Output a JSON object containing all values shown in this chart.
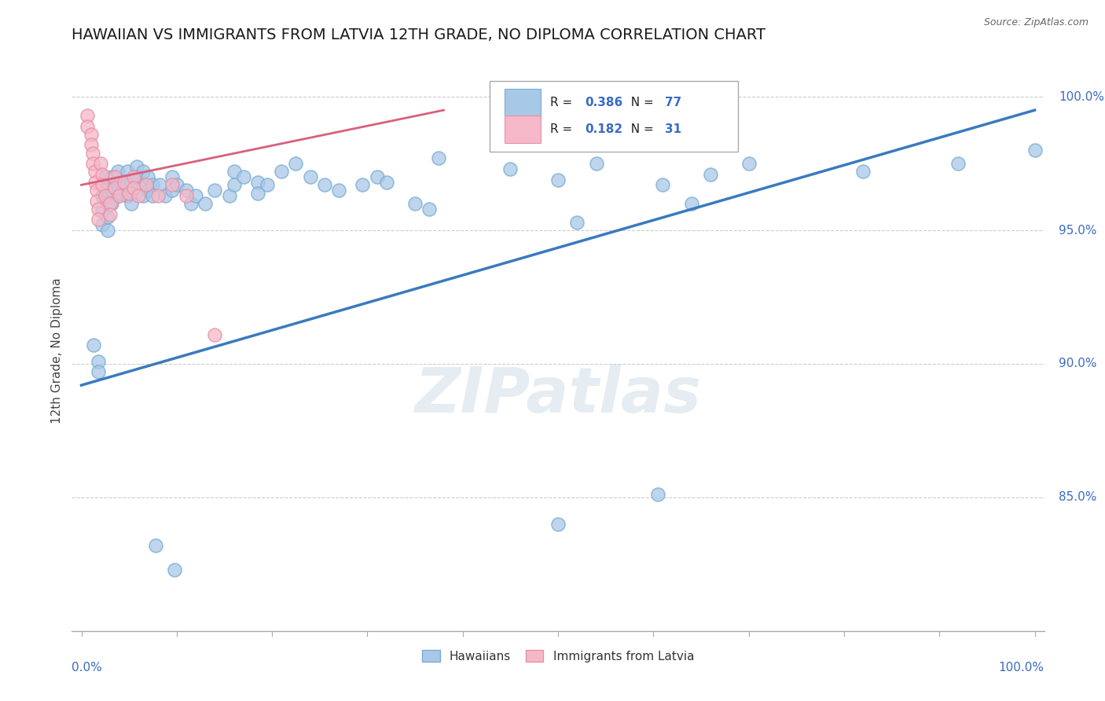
{
  "title": "HAWAIIAN VS IMMIGRANTS FROM LATVIA 12TH GRADE, NO DIPLOMA CORRELATION CHART",
  "source_text": "Source: ZipAtlas.com",
  "ylabel": "12th Grade, No Diploma",
  "legend_blue_r": "0.386",
  "legend_blue_n": "77",
  "legend_pink_r": "0.182",
  "legend_pink_n": "31",
  "legend_label_blue": "Hawaiians",
  "legend_label_pink": "Immigrants from Latvia",
  "watermark": "ZIPatlas",
  "blue_color": "#a8c8e8",
  "blue_edge_color": "#7aaed0",
  "blue_line_color": "#3a7abf",
  "pink_color": "#f5b8c8",
  "pink_edge_color": "#e890a8",
  "pink_line_color": "#d9607a",
  "blue_scatter": [
    [
      0.013,
      0.907
    ],
    [
      0.018,
      0.901
    ],
    [
      0.018,
      0.897
    ],
    [
      0.022,
      0.963
    ],
    [
      0.022,
      0.957
    ],
    [
      0.022,
      0.952
    ],
    [
      0.025,
      0.97
    ],
    [
      0.025,
      0.965
    ],
    [
      0.028,
      0.96
    ],
    [
      0.028,
      0.955
    ],
    [
      0.028,
      0.95
    ],
    [
      0.032,
      0.97
    ],
    [
      0.032,
      0.965
    ],
    [
      0.032,
      0.96
    ],
    [
      0.038,
      0.972
    ],
    [
      0.038,
      0.967
    ],
    [
      0.038,
      0.963
    ],
    [
      0.042,
      0.968
    ],
    [
      0.042,
      0.964
    ],
    [
      0.048,
      0.972
    ],
    [
      0.048,
      0.967
    ],
    [
      0.048,
      0.963
    ],
    [
      0.052,
      0.968
    ],
    [
      0.052,
      0.964
    ],
    [
      0.052,
      0.96
    ],
    [
      0.058,
      0.974
    ],
    [
      0.058,
      0.97
    ],
    [
      0.065,
      0.972
    ],
    [
      0.065,
      0.967
    ],
    [
      0.065,
      0.963
    ],
    [
      0.07,
      0.97
    ],
    [
      0.07,
      0.965
    ],
    [
      0.075,
      0.967
    ],
    [
      0.075,
      0.963
    ],
    [
      0.082,
      0.967
    ],
    [
      0.088,
      0.963
    ],
    [
      0.095,
      0.97
    ],
    [
      0.095,
      0.965
    ],
    [
      0.1,
      0.967
    ],
    [
      0.11,
      0.965
    ],
    [
      0.115,
      0.96
    ],
    [
      0.12,
      0.963
    ],
    [
      0.13,
      0.96
    ],
    [
      0.14,
      0.965
    ],
    [
      0.155,
      0.963
    ],
    [
      0.16,
      0.972
    ],
    [
      0.16,
      0.967
    ],
    [
      0.17,
      0.97
    ],
    [
      0.185,
      0.968
    ],
    [
      0.185,
      0.964
    ],
    [
      0.195,
      0.967
    ],
    [
      0.21,
      0.972
    ],
    [
      0.225,
      0.975
    ],
    [
      0.24,
      0.97
    ],
    [
      0.255,
      0.967
    ],
    [
      0.27,
      0.965
    ],
    [
      0.295,
      0.967
    ],
    [
      0.31,
      0.97
    ],
    [
      0.32,
      0.968
    ],
    [
      0.35,
      0.96
    ],
    [
      0.365,
      0.958
    ],
    [
      0.375,
      0.977
    ],
    [
      0.45,
      0.973
    ],
    [
      0.5,
      0.969
    ],
    [
      0.52,
      0.953
    ],
    [
      0.54,
      0.975
    ],
    [
      0.61,
      0.967
    ],
    [
      0.64,
      0.96
    ],
    [
      0.66,
      0.971
    ],
    [
      0.7,
      0.975
    ],
    [
      0.82,
      0.972
    ],
    [
      0.92,
      0.975
    ],
    [
      1.0,
      0.98
    ],
    [
      0.078,
      0.832
    ],
    [
      0.098,
      0.823
    ],
    [
      0.5,
      0.84
    ],
    [
      0.605,
      0.851
    ]
  ],
  "pink_scatter": [
    [
      0.006,
      0.993
    ],
    [
      0.006,
      0.989
    ],
    [
      0.01,
      0.986
    ],
    [
      0.01,
      0.982
    ],
    [
      0.012,
      0.979
    ],
    [
      0.012,
      0.975
    ],
    [
      0.014,
      0.972
    ],
    [
      0.014,
      0.968
    ],
    [
      0.016,
      0.965
    ],
    [
      0.016,
      0.961
    ],
    [
      0.018,
      0.958
    ],
    [
      0.018,
      0.954
    ],
    [
      0.02,
      0.975
    ],
    [
      0.022,
      0.971
    ],
    [
      0.022,
      0.967
    ],
    [
      0.025,
      0.963
    ],
    [
      0.03,
      0.96
    ],
    [
      0.03,
      0.956
    ],
    [
      0.035,
      0.97
    ],
    [
      0.035,
      0.966
    ],
    [
      0.04,
      0.963
    ],
    [
      0.045,
      0.968
    ],
    [
      0.05,
      0.964
    ],
    [
      0.055,
      0.97
    ],
    [
      0.055,
      0.966
    ],
    [
      0.06,
      0.963
    ],
    [
      0.068,
      0.967
    ],
    [
      0.08,
      0.963
    ],
    [
      0.095,
      0.967
    ],
    [
      0.11,
      0.963
    ],
    [
      0.14,
      0.911
    ]
  ],
  "blue_trend_x": [
    0.0,
    1.0
  ],
  "blue_trend_y": [
    0.892,
    0.995
  ],
  "pink_trend_x": [
    0.0,
    0.38
  ],
  "pink_trend_y": [
    0.967,
    0.995
  ],
  "xlim": [
    -0.01,
    1.01
  ],
  "ylim": [
    0.8,
    1.01
  ],
  "ytick_values": [
    0.85,
    0.9,
    0.95,
    1.0
  ],
  "ytick_labels": [
    "85.0%",
    "90.0%",
    "95.0%",
    "100.0%"
  ],
  "title_fontsize": 14,
  "axis_label_fontsize": 11,
  "tick_fontsize": 11
}
